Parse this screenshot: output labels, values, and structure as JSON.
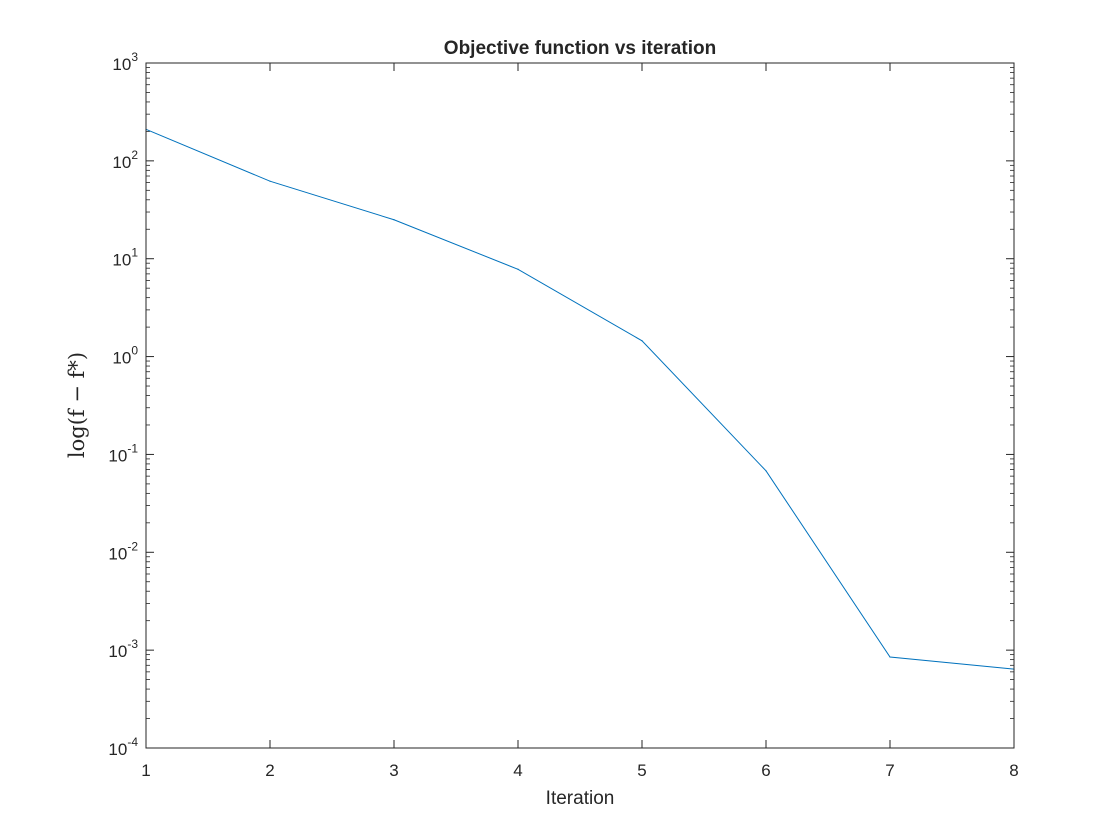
{
  "chart_data": {
    "type": "line",
    "title": "Objective function vs iteration",
    "xlabel": "Iteration",
    "ylabel": "log(f − f*)",
    "xscale": "linear",
    "yscale": "log",
    "xlim": [
      1,
      8
    ],
    "ylim": [
      0.0001,
      1000
    ],
    "xticks": [
      1,
      2,
      3,
      4,
      5,
      6,
      7,
      8
    ],
    "yticks": [
      {
        "value": 1000,
        "base": "10",
        "exp": "3"
      },
      {
        "value": 100,
        "base": "10",
        "exp": "2"
      },
      {
        "value": 10,
        "base": "10",
        "exp": "1"
      },
      {
        "value": 1,
        "base": "10",
        "exp": "0"
      },
      {
        "value": 0.1,
        "base": "10",
        "exp": "-1"
      },
      {
        "value": 0.01,
        "base": "10",
        "exp": "-2"
      },
      {
        "value": 0.001,
        "base": "10",
        "exp": "-3"
      },
      {
        "value": 0.0001,
        "base": "10",
        "exp": "-4"
      }
    ],
    "grid": false,
    "legend": "none",
    "series": [
      {
        "x": [
          1,
          2,
          3,
          4,
          5,
          6,
          7,
          8
        ],
        "y": [
          210,
          62,
          25,
          7.8,
          1.45,
          0.068,
          0.00085,
          0.00064
        ],
        "color": "#0072BD"
      }
    ]
  }
}
